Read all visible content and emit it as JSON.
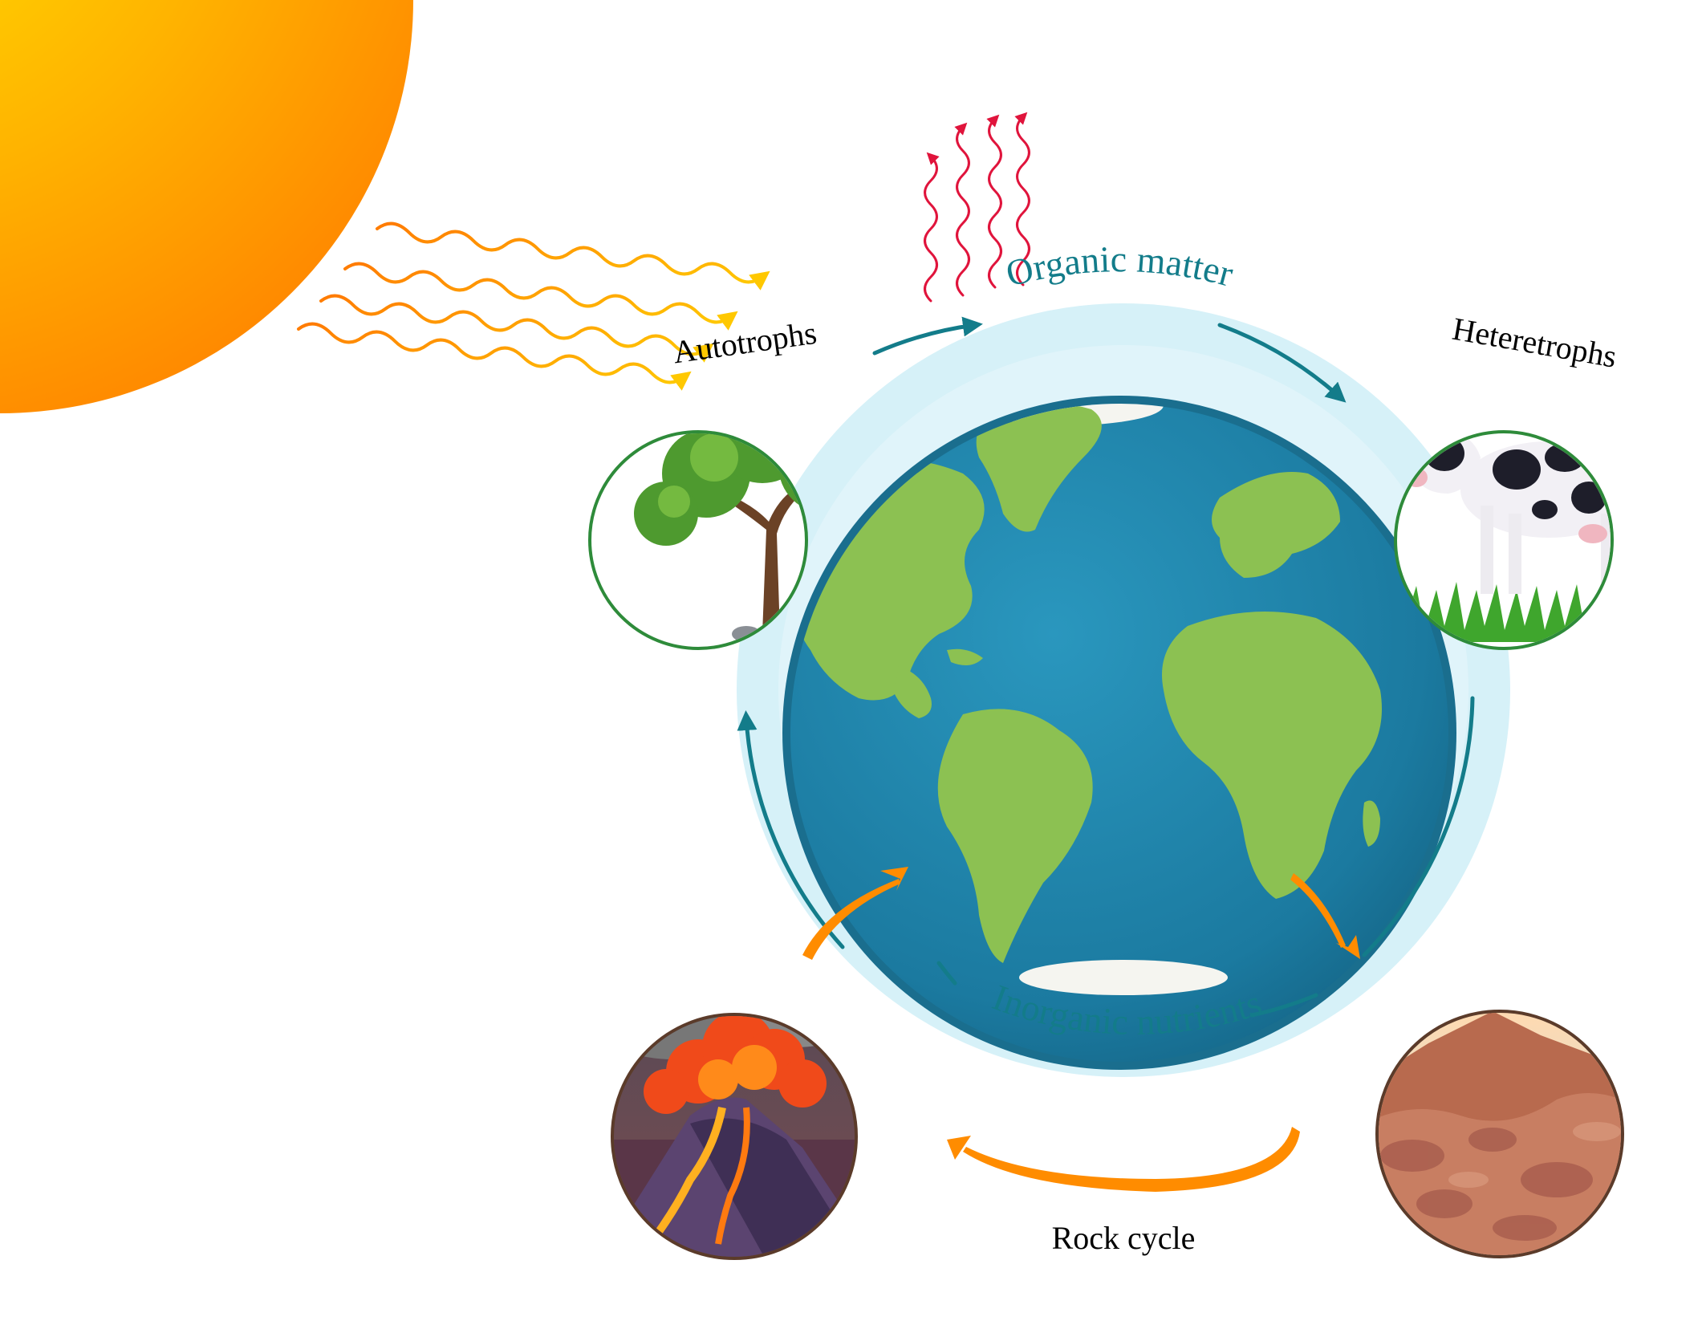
{
  "labels": {
    "autotrophs": "Autotrophs",
    "heterotrophs": "Heteretrophs",
    "organic_matter": "Organic matter",
    "inorganic_nutrients": "Inorganic nutrients",
    "rock_cycle": "Rock cycle"
  },
  "colors": {
    "sun_core": "#FFD700",
    "sun_edge": "#FF8C00",
    "cycle_ring": "#D6F1F8",
    "cycle_arrow": "#137C8A",
    "ocean": "#1E7FA4",
    "land": "#8CC152",
    "circle_border_green": "#2E8B3A",
    "circle_border_brown": "#5B3B2A",
    "rock_arrow": "#FF8C00",
    "heat_arrow": "#E0143C"
  }
}
